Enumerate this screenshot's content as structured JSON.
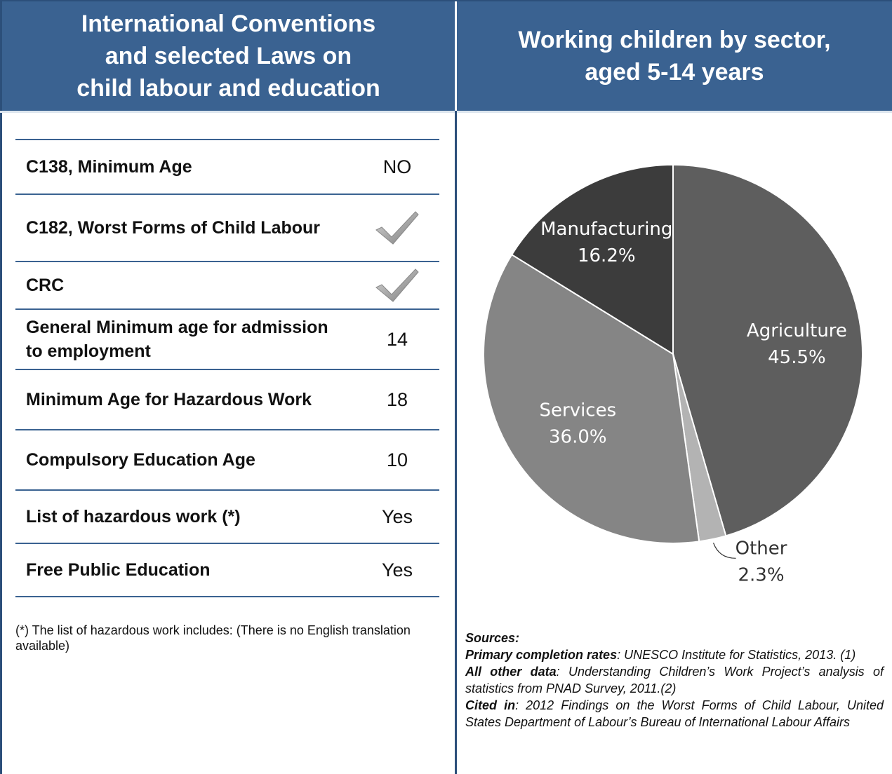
{
  "left_header": {
    "title": "International Conventions\nand selected Laws on\nchild labour and education"
  },
  "right_header": {
    "title": "Working children by sector,\naged 5-14 years"
  },
  "laws": [
    {
      "label": "C138, Minimum Age",
      "value": "NO"
    },
    {
      "label": "C182, Worst Forms of Child Labour",
      "value": "",
      "icon": "checkmark-icon"
    },
    {
      "label": "CRC",
      "value": "",
      "icon": "checkmark-icon"
    },
    {
      "label": "General Minimum age for admission to employment",
      "value": "14"
    },
    {
      "label": "Minimum Age for Hazardous Work",
      "value": "18"
    },
    {
      "label": "Compulsory Education Age",
      "value": "10"
    },
    {
      "label": "List of hazardous work (*)",
      "value": "Yes"
    },
    {
      "label": "Free Public Education",
      "value": "Yes"
    }
  ],
  "footnote": "(*) The list of hazardous work includes: (There is no English translation available)",
  "chart_data": {
    "type": "pie",
    "slices": [
      {
        "label": "Agriculture",
        "value": 45.5,
        "value_label": "45.5%",
        "color": "#5e5e5e"
      },
      {
        "label": "Other",
        "value": 2.3,
        "value_label": "2.3%",
        "color": "#b3b3b3"
      },
      {
        "label": "Services",
        "value": 36.0,
        "value_label": "36.0%",
        "color": "#858585"
      },
      {
        "label": "Manufacturing",
        "value": 16.2,
        "value_label": "16.2%",
        "color": "#3c3c3c"
      }
    ]
  },
  "sources": {
    "heading": "Sources:",
    "items": [
      {
        "key": "Primary completion rates",
        "text": ": UNESCO Institute for Statistics, 2013. (1)"
      },
      {
        "key": "All other data",
        "text": ": Understanding Children’s Work Project’s analysis of statistics from PNAD Survey, 2011.(2)"
      },
      {
        "key": "Cited in",
        "text": ": 2012 Findings on the Worst Forms of Child Labour, United States Department of Labour’s Bureau of International Labour Affairs"
      }
    ]
  }
}
